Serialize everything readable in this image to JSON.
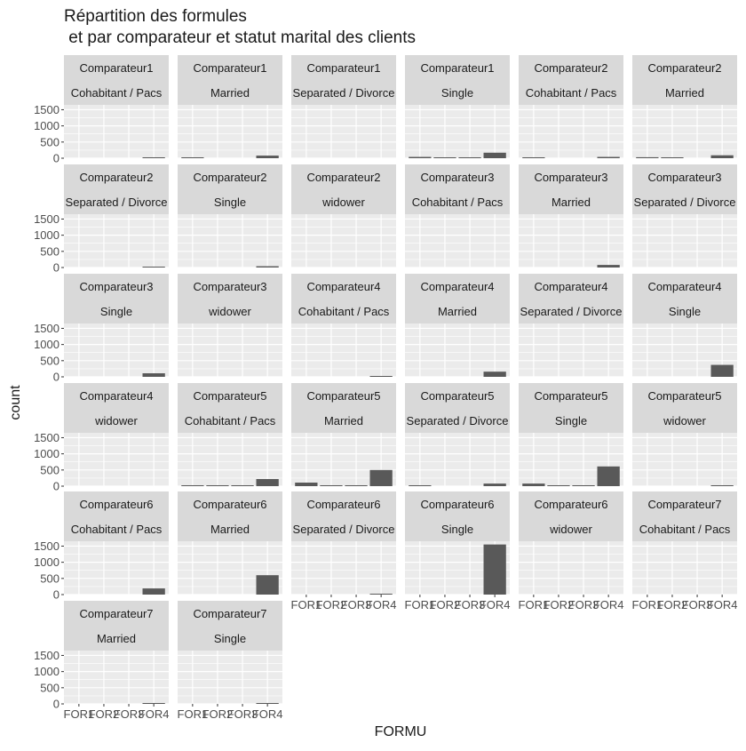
{
  "chart_data": {
    "type": "bar",
    "title": "Répartition des formules",
    "subtitle": " et par comparateur et statut marital des clients",
    "xlabel": "FORMU",
    "ylabel": "count",
    "categories": [
      "FOR1",
      "FOR2",
      "FOR3",
      "FOR4"
    ],
    "y_ticks": [
      0,
      500,
      1000,
      1500
    ],
    "ylim": [
      0,
      1650
    ],
    "grid": true,
    "legend": "none",
    "colors": {
      "bar": "#595959",
      "panel_bg": "#ebebeb",
      "strip_bg": "#d9d9d9",
      "grid": "#ffffff",
      "text": "#1a1a1a",
      "axis_text": "#4d4d4d"
    },
    "facets": [
      {
        "comparateur": "Comparateur1",
        "statut": "Cohabitant / Pacs",
        "values": [
          0,
          0,
          0,
          20
        ]
      },
      {
        "comparateur": "Comparateur1",
        "statut": "Married",
        "values": [
          20,
          0,
          0,
          80
        ]
      },
      {
        "comparateur": "Comparateur1",
        "statut": "Separated / Divorce",
        "values": [
          0,
          0,
          0,
          0
        ]
      },
      {
        "comparateur": "Comparateur1",
        "statut": "Single",
        "values": [
          40,
          20,
          20,
          170
        ]
      },
      {
        "comparateur": "Comparateur2",
        "statut": "Cohabitant / Pacs",
        "values": [
          20,
          0,
          0,
          40
        ]
      },
      {
        "comparateur": "Comparateur2",
        "statut": "Married",
        "values": [
          30,
          20,
          0,
          90
        ]
      },
      {
        "comparateur": "Comparateur2",
        "statut": "Separated / Divorce",
        "values": [
          0,
          0,
          0,
          20
        ]
      },
      {
        "comparateur": "Comparateur2",
        "statut": "Single",
        "values": [
          0,
          0,
          0,
          40
        ]
      },
      {
        "comparateur": "Comparateur2",
        "statut": "widower",
        "values": [
          0,
          0,
          0,
          0
        ]
      },
      {
        "comparateur": "Comparateur3",
        "statut": "Cohabitant / Pacs",
        "values": [
          0,
          0,
          0,
          0
        ]
      },
      {
        "comparateur": "Comparateur3",
        "statut": "Married",
        "values": [
          0,
          0,
          0,
          80
        ]
      },
      {
        "comparateur": "Comparateur3",
        "statut": "Separated / Divorce",
        "values": [
          0,
          0,
          0,
          0
        ]
      },
      {
        "comparateur": "Comparateur3",
        "statut": "Single",
        "values": [
          0,
          0,
          0,
          110
        ]
      },
      {
        "comparateur": "Comparateur3",
        "statut": "widower",
        "values": [
          0,
          0,
          0,
          0
        ]
      },
      {
        "comparateur": "Comparateur4",
        "statut": "Cohabitant / Pacs",
        "values": [
          0,
          0,
          0,
          20
        ]
      },
      {
        "comparateur": "Comparateur4",
        "statut": "Married",
        "values": [
          0,
          0,
          0,
          160
        ]
      },
      {
        "comparateur": "Comparateur4",
        "statut": "Separated / Divorce",
        "values": [
          0,
          0,
          0,
          0
        ]
      },
      {
        "comparateur": "Comparateur4",
        "statut": "Single",
        "values": [
          0,
          0,
          0,
          370
        ]
      },
      {
        "comparateur": "Comparateur4",
        "statut": "widower",
        "values": [
          0,
          0,
          0,
          0
        ]
      },
      {
        "comparateur": "Comparateur5",
        "statut": "Cohabitant / Pacs",
        "values": [
          20,
          20,
          20,
          220
        ]
      },
      {
        "comparateur": "Comparateur5",
        "statut": "Married",
        "values": [
          110,
          20,
          20,
          500
        ]
      },
      {
        "comparateur": "Comparateur5",
        "statut": "Separated / Divorce",
        "values": [
          20,
          0,
          0,
          80
        ]
      },
      {
        "comparateur": "Comparateur5",
        "statut": "Single",
        "values": [
          80,
          20,
          20,
          610
        ]
      },
      {
        "comparateur": "Comparateur5",
        "statut": "widower",
        "values": [
          0,
          0,
          0,
          20
        ]
      },
      {
        "comparateur": "Comparateur6",
        "statut": "Cohabitant / Pacs",
        "values": [
          0,
          0,
          0,
          190
        ]
      },
      {
        "comparateur": "Comparateur6",
        "statut": "Married",
        "values": [
          0,
          0,
          0,
          600
        ]
      },
      {
        "comparateur": "Comparateur6",
        "statut": "Separated / Divorce",
        "values": [
          0,
          0,
          0,
          20
        ]
      },
      {
        "comparateur": "Comparateur6",
        "statut": "Single",
        "values": [
          0,
          0,
          0,
          1550
        ]
      },
      {
        "comparateur": "Comparateur6",
        "statut": "widower",
        "values": [
          0,
          0,
          0,
          0
        ]
      },
      {
        "comparateur": "Comparateur7",
        "statut": "Cohabitant / Pacs",
        "values": [
          0,
          0,
          0,
          0
        ]
      },
      {
        "comparateur": "Comparateur7",
        "statut": "Married",
        "values": [
          0,
          0,
          0,
          20
        ]
      },
      {
        "comparateur": "Comparateur7",
        "statut": "Single",
        "values": [
          0,
          0,
          0,
          20
        ]
      }
    ]
  }
}
